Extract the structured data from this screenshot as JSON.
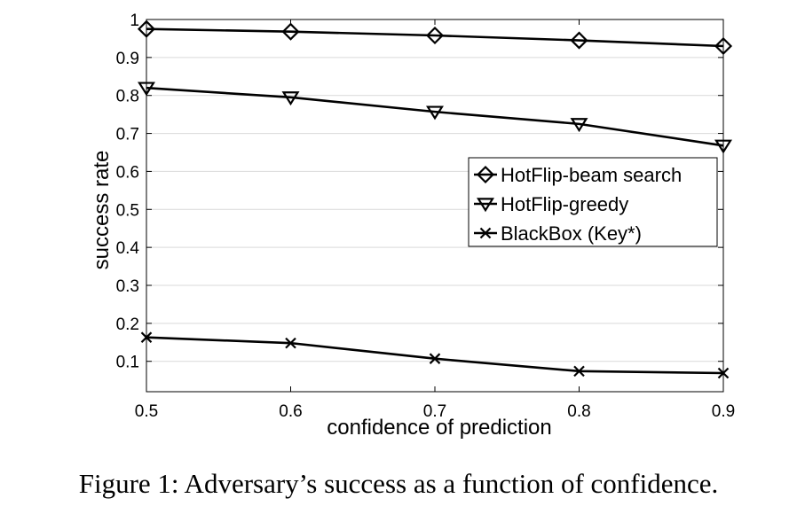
{
  "caption": "Figure 1: Adversary’s success as a function of confidence.",
  "chart_data": {
    "type": "line",
    "xlabel": "confidence of prediction",
    "ylabel": "success rate",
    "x": [
      0.5,
      0.6,
      0.7,
      0.8,
      0.9
    ],
    "xlim": [
      0.5,
      0.9
    ],
    "ylim": [
      0.02,
      1.0
    ],
    "xticks": [
      "0.5",
      "0.6",
      "0.7",
      "0.8",
      "0.9"
    ],
    "yticks": [
      "0.1",
      "0.2",
      "0.3",
      "0.4",
      "0.5",
      "0.6",
      "0.7",
      "0.8",
      "0.9",
      "1"
    ],
    "grid": "horizontal",
    "legend_position": "center-right",
    "series": [
      {
        "name": "HotFlip-beam search",
        "marker": "diamond",
        "values": [
          0.975,
          0.968,
          0.958,
          0.945,
          0.93
        ]
      },
      {
        "name": "HotFlip-greedy",
        "marker": "triangle-down",
        "values": [
          0.82,
          0.795,
          0.757,
          0.725,
          0.668
        ]
      },
      {
        "name": "BlackBox (Key*)",
        "marker": "x",
        "values": [
          0.163,
          0.148,
          0.107,
          0.074,
          0.069
        ]
      }
    ]
  }
}
